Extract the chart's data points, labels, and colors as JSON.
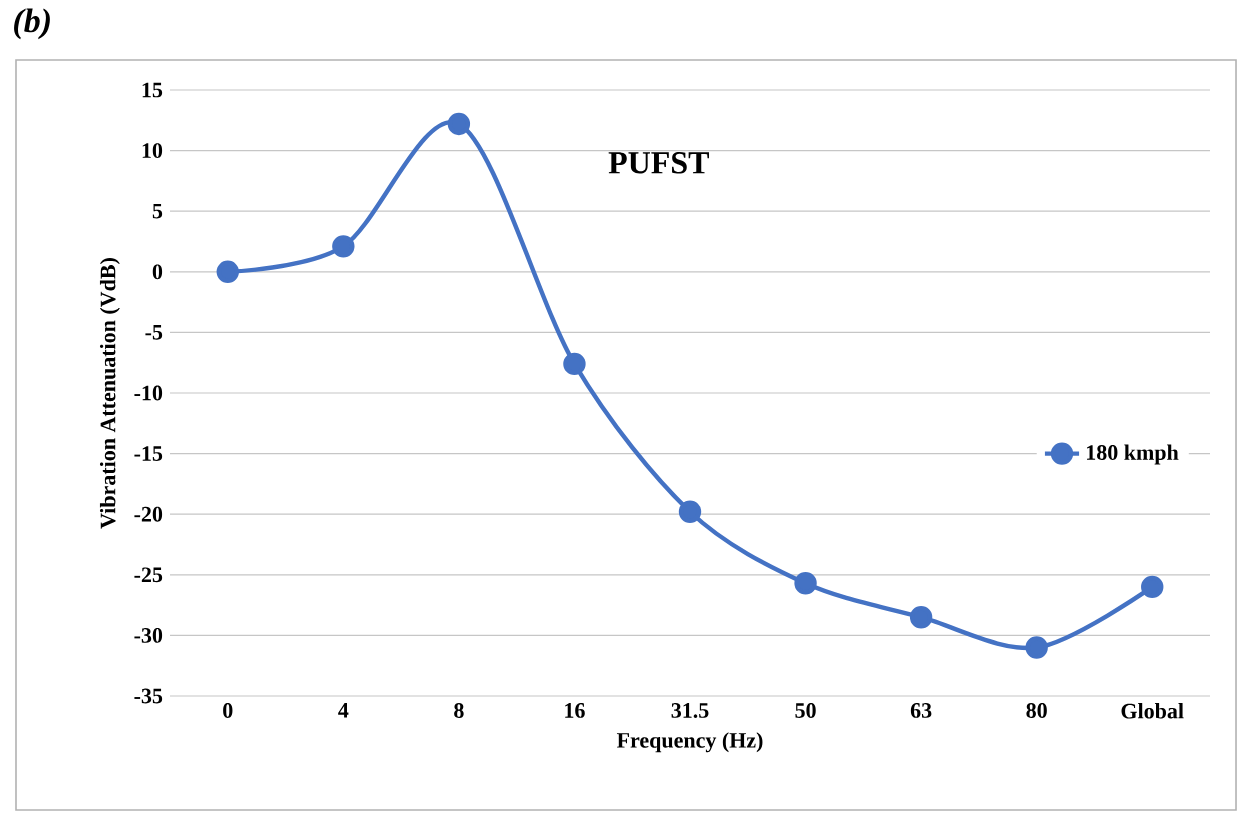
{
  "chart_data": {
    "type": "line",
    "title": "PUFST",
    "xlabel": "Frequency (Hz)",
    "ylabel": "Vibration Attenuation (VdB)",
    "annotations": [
      "(b)"
    ],
    "categories": [
      "0",
      "4",
      "8",
      "16",
      "31.5",
      "50",
      "63",
      "80",
      "Global"
    ],
    "series": [
      {
        "name": "180 kmph",
        "color": "#4472c4",
        "values": [
          0,
          2.1,
          12.2,
          -7.6,
          -19.8,
          -25.7,
          -28.5,
          -31,
          -26
        ]
      }
    ],
    "ylim": [
      -35,
      15
    ],
    "yticks": [
      -35,
      -30,
      -25,
      -20,
      -15,
      -10,
      -5,
      0,
      5,
      10,
      15
    ],
    "grid": "y",
    "legend": "right",
    "marker": "circle",
    "line_style": "solid"
  }
}
